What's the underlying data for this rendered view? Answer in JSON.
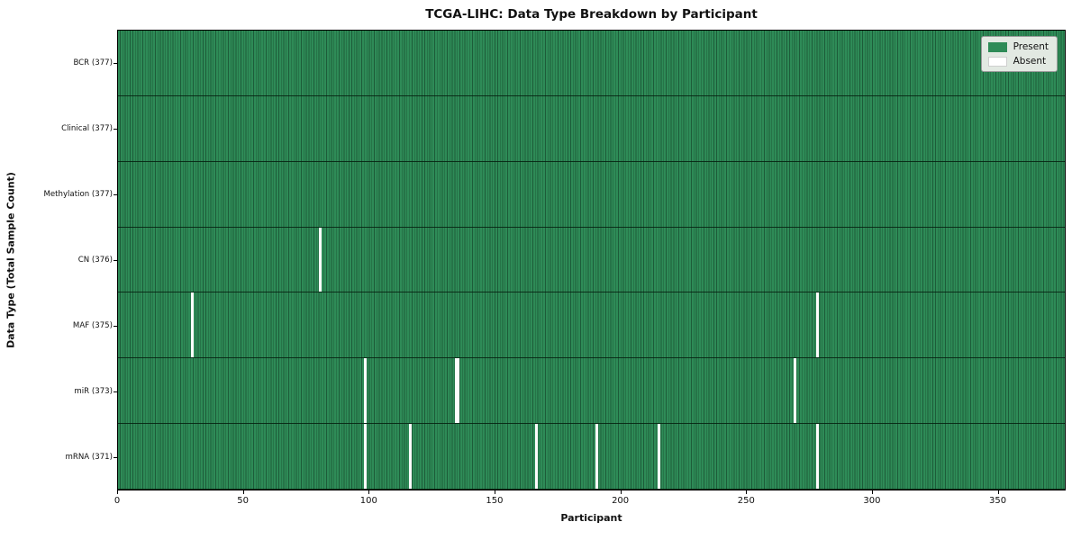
{
  "chart_data": {
    "type": "heatmap",
    "title": "TCGA-LIHC: Data Type Breakdown by Participant",
    "xlabel": "Participant",
    "ylabel": "Data Type (Total Sample Count)",
    "n_participants": 377,
    "xlim": [
      0,
      377
    ],
    "x_ticks": [
      0,
      50,
      100,
      150,
      200,
      250,
      300,
      350
    ],
    "colors": {
      "present_fill": "#2e8b57",
      "cell_edge": "#1d5c39",
      "absent_fill": "#fcfcfc",
      "row_separator": "#0a2414",
      "plot_border": "#000000",
      "legend_bg": "#e2e9e2"
    },
    "legend": [
      {
        "label": "Present",
        "color": "#2e8b57"
      },
      {
        "label": "Absent",
        "color": "#ffffff"
      }
    ],
    "rows": [
      {
        "label": "BCR (377)",
        "data_type": "BCR",
        "total": 377,
        "absent_indices": []
      },
      {
        "label": "Clinical (377)",
        "data_type": "Clinical",
        "total": 377,
        "absent_indices": []
      },
      {
        "label": "Methylation (377)",
        "data_type": "Methylation",
        "total": 377,
        "absent_indices": []
      },
      {
        "label": "CN (376)",
        "data_type": "CN",
        "total": 376,
        "absent_indices": [
          80
        ]
      },
      {
        "label": "MAF (375)",
        "data_type": "MAF",
        "total": 375,
        "absent_indices": [
          29,
          278
        ]
      },
      {
        "label": "miR (373)",
        "data_type": "miR",
        "total": 373,
        "absent_indices": [
          98,
          134,
          135,
          269
        ]
      },
      {
        "label": "mRNA (371)",
        "data_type": "mRNA",
        "total": 371,
        "absent_indices": [
          98,
          116,
          166,
          190,
          215,
          278
        ]
      }
    ]
  }
}
